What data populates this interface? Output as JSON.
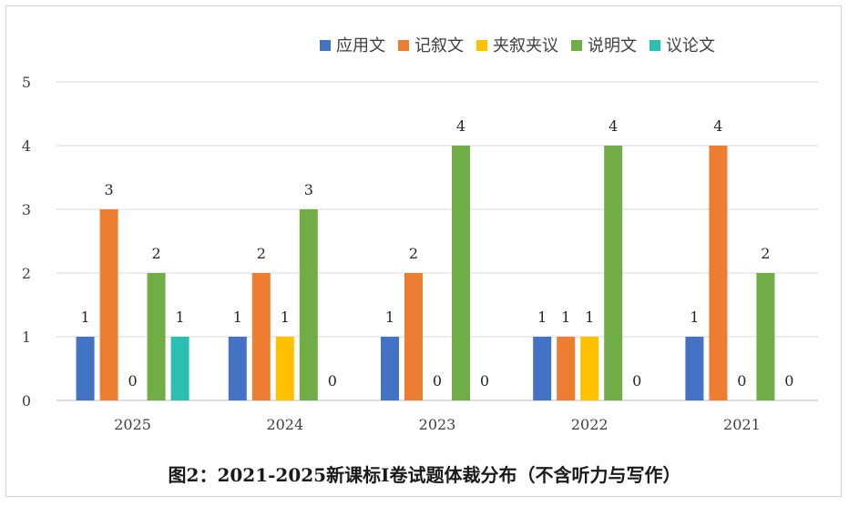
{
  "caption": "图2：2021-2025新课标I卷试题体裁分布（不含听力与写作）",
  "chart_data": {
    "type": "bar",
    "categories": [
      "2025",
      "2024",
      "2023",
      "2022",
      "2021"
    ],
    "series": [
      {
        "name": "应用文",
        "color": "#4472C4",
        "values": [
          1,
          1,
          1,
          1,
          1
        ]
      },
      {
        "name": "记叙文",
        "color": "#ED7D31",
        "values": [
          3,
          2,
          2,
          1,
          4
        ]
      },
      {
        "name": "夹叙夹议",
        "color": "#FFC000",
        "values": [
          0,
          1,
          0,
          1,
          0
        ]
      },
      {
        "name": "说明文",
        "color": "#70AD47",
        "values": [
          2,
          3,
          4,
          4,
          2
        ]
      },
      {
        "name": "议论文",
        "color": "#2BBFB1",
        "values": [
          1,
          0,
          0,
          0,
          0
        ]
      }
    ],
    "yticks": [
      0,
      1,
      2,
      3,
      4,
      5
    ],
    "ylim": [
      0,
      5
    ],
    "grid": true,
    "legend_position": "top",
    "data_labels": true
  }
}
